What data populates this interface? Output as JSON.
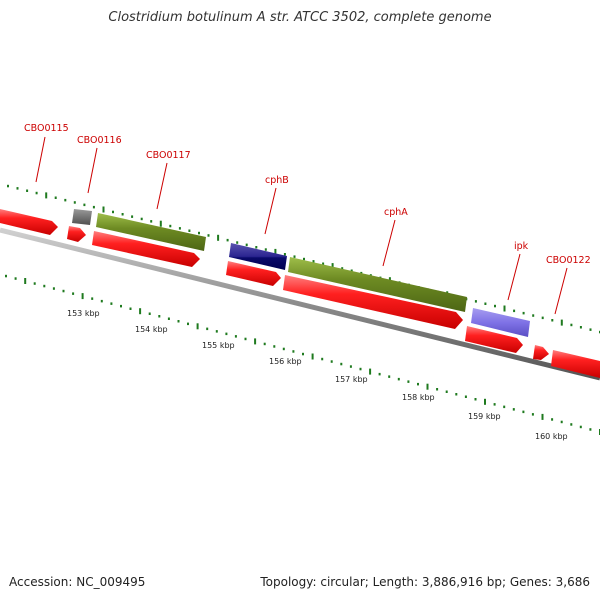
{
  "title": "Clostridium botulinum A str. ATCC 3502, complete genome",
  "footer": {
    "accession": "Accession: NC_009495",
    "summary": "Topology: circular; Length: 3,886,916 bp; Genes: 3,686"
  },
  "colors": {
    "backbone": "#8c8c8c",
    "gene_label": "#cc0000",
    "tick": "#1f7a1f",
    "cds_red": "#ee1111",
    "olive": "#6e8b23",
    "navy": "#0a0a7a",
    "slate": "#5a52b8",
    "lavender": "#7f72e6",
    "gray": "#666666"
  },
  "genes": [
    {
      "name": "CBO0115"
    },
    {
      "name": "CBO0116"
    },
    {
      "name": "CBO0117"
    },
    {
      "name": "cphB"
    },
    {
      "name": "cphA"
    },
    {
      "name": "ipk"
    },
    {
      "name": "CBO0122"
    }
  ],
  "kbp_labels": [
    "153 kbp",
    "154 kbp",
    "155 kbp",
    "156 kbp",
    "157 kbp",
    "158 kbp",
    "159 kbp",
    "160 kbp"
  ]
}
